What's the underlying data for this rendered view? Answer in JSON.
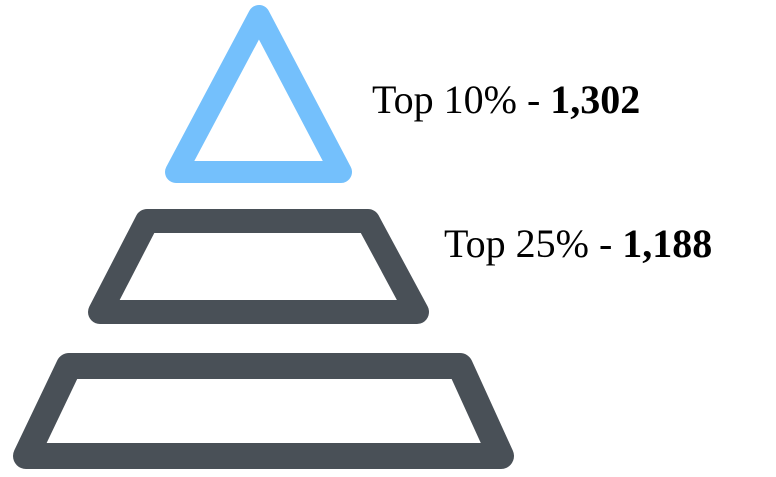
{
  "colors": {
    "top_tier": "#74C0FC",
    "lower_tiers": "#495057"
  },
  "tiers": [
    {
      "label": "Top 10%",
      "separator": " - ",
      "value": "1,302"
    },
    {
      "label": "Top 25%",
      "separator": " - ",
      "value": "1,188"
    },
    {
      "label": "",
      "separator": "",
      "value": ""
    }
  ]
}
